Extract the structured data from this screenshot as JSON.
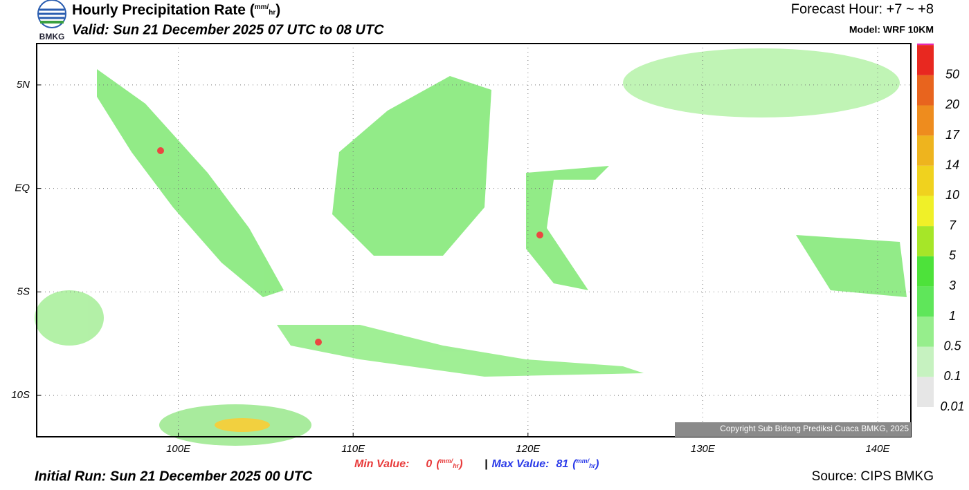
{
  "header": {
    "logo": "BMKG",
    "title": "Hourly Precipitation Rate (",
    "title_unit": [
      "mm",
      "/",
      "hr"
    ],
    "title_end": ")",
    "valid": "Valid: Sun 21 December 2025 07 UTC to 08 UTC",
    "forecast": "Forecast Hour: +7 ~ +8",
    "model": "Model: WRF 10KM"
  },
  "map": {
    "xlim": [
      91.9,
      141.9
    ],
    "ylim": [
      -12,
      7
    ],
    "xticks": [
      {
        "value": 100,
        "label": "100E"
      },
      {
        "value": 110,
        "label": "110E"
      },
      {
        "value": 120,
        "label": "120E"
      },
      {
        "value": 130,
        "label": "130E"
      },
      {
        "value": 140,
        "label": "140E"
      }
    ],
    "yticks": [
      {
        "value": 5,
        "label": "5N"
      },
      {
        "value": 0,
        "label": "EQ"
      },
      {
        "value": -5,
        "label": "5S"
      },
      {
        "value": -10,
        "label": "10S"
      }
    ],
    "grid": true,
    "copyright": "Copyright Sub Bidang Prediksi Cuaca BMKG, 2025"
  },
  "colorbar": {
    "levels": [
      {
        "value": 0.01,
        "color": "#e6e6e6"
      },
      {
        "value": 0.1,
        "color": "#c6f2c0"
      },
      {
        "value": 0.5,
        "color": "#96ee8c"
      },
      {
        "value": 1,
        "color": "#5fe65a"
      },
      {
        "value": 3,
        "color": "#4de23a"
      },
      {
        "value": 5,
        "color": "#a6e628"
      },
      {
        "value": 7,
        "color": "#f0f028"
      },
      {
        "value": 10,
        "color": "#f0d21e"
      },
      {
        "value": 14,
        "color": "#eeb41e"
      },
      {
        "value": 17,
        "color": "#ee8c1e"
      },
      {
        "value": 20,
        "color": "#e8641e"
      },
      {
        "value": 50,
        "color": "#e82820"
      }
    ],
    "top_color": "#e628b4"
  },
  "footer": {
    "min_label": "Min Value:",
    "min_value": 0,
    "max_label": "Max Value:",
    "max_value": 81,
    "unit": [
      "(",
      "mm",
      "/",
      "hr",
      ")"
    ],
    "separator": "|",
    "initial_run": "Initial Run: Sun 21 December 2025 00 UTC",
    "source": "Source: CIPS BMKG"
  }
}
